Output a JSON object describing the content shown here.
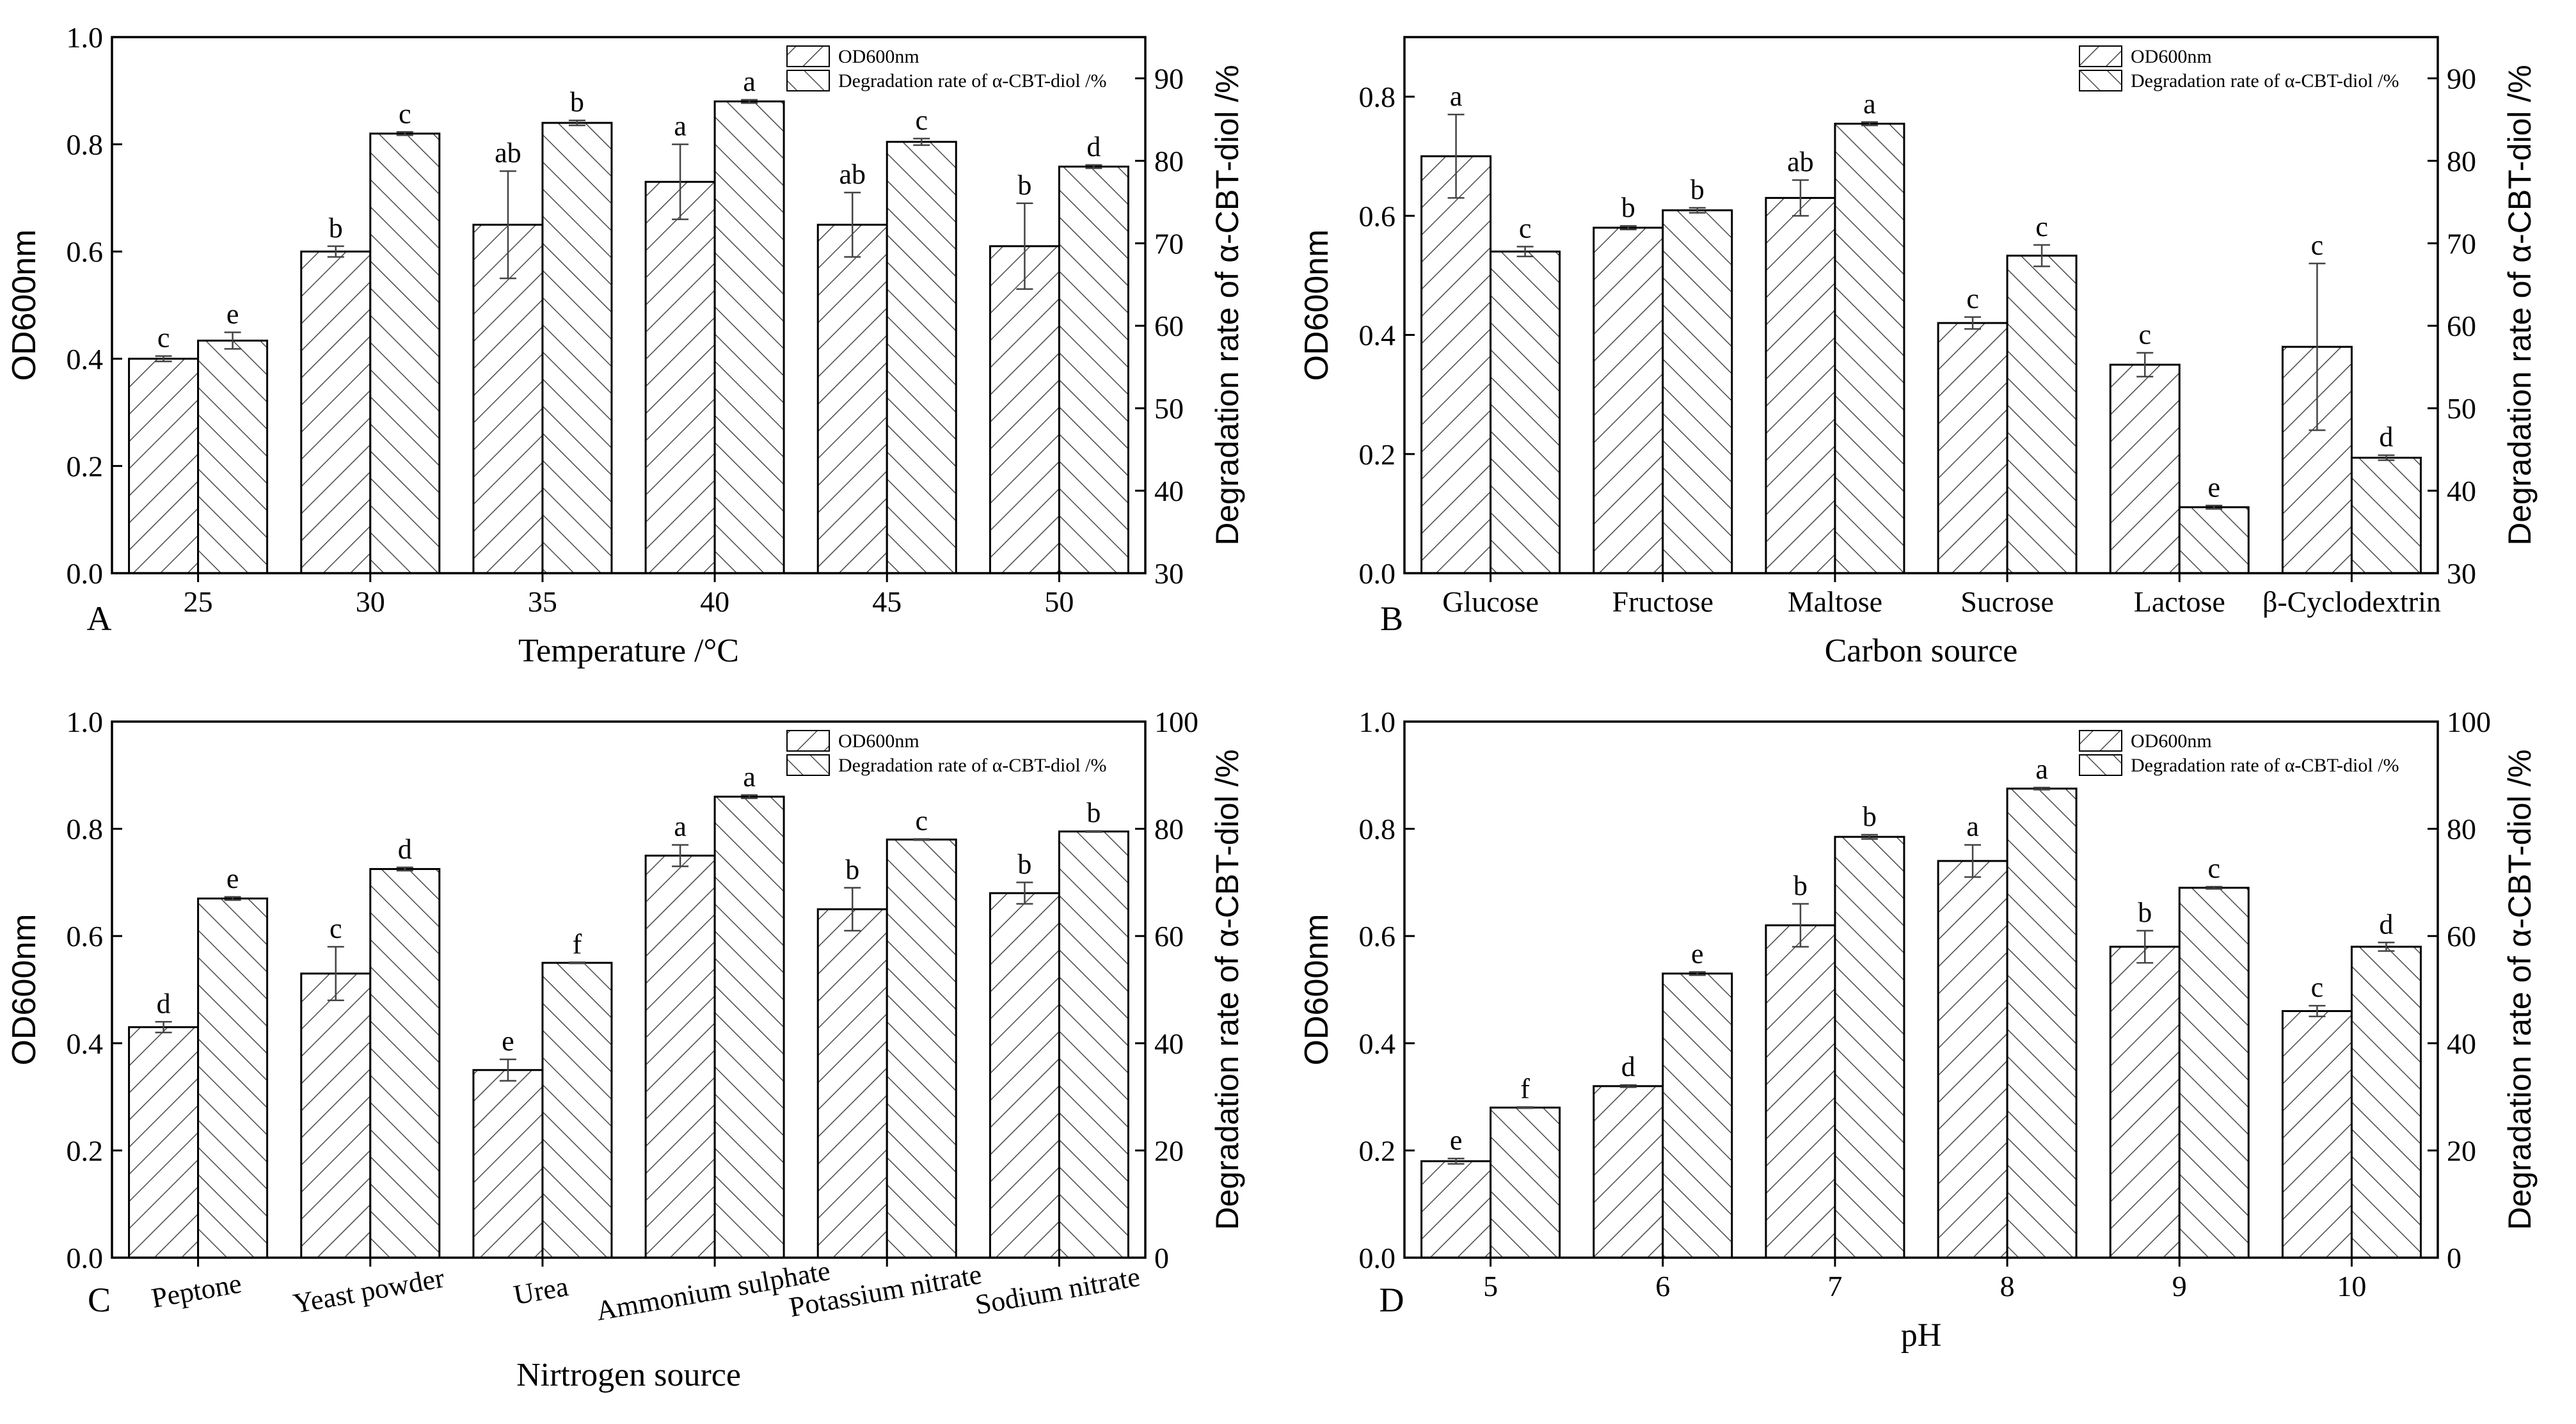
{
  "figure": {
    "legend_labels": [
      "OD600nm",
      "Degradation rate of α-CBT-diol /%"
    ],
    "colors": {
      "axis": "#000000",
      "bar_fill": "#ffffff",
      "hatch": "#4a4a4a"
    }
  },
  "chart_data": [
    {
      "type": "bar",
      "panel_label": "A",
      "title": "",
      "xlabel": "Temperature /°C",
      "ylabel_left": "OD600nm",
      "ylabel_right": "Degradation rate of α-CBT-diol /%",
      "categories": [
        "25",
        "30",
        "35",
        "40",
        "45",
        "50"
      ],
      "ylim_left": [
        0,
        1.0
      ],
      "yticks_left": [
        "0.0",
        "0.2",
        "0.4",
        "0.6",
        "0.8",
        "1.0"
      ],
      "ylim_right": [
        30,
        95
      ],
      "yticks_right": [
        "30",
        "40",
        "50",
        "60",
        "70",
        "80",
        "90"
      ],
      "rotate_xticks": false,
      "legend_position": "top-right",
      "series": [
        {
          "name": "OD600nm",
          "axis": "left",
          "values": [
            0.4,
            0.6,
            0.65,
            0.73,
            0.65,
            0.61
          ],
          "errors": [
            0.005,
            0.01,
            0.1,
            0.07,
            0.06,
            0.08
          ],
          "letters": [
            "c",
            "b",
            "ab",
            "a",
            "ab",
            "b"
          ]
        },
        {
          "name": "Degradation rate of α-CBT-diol /%",
          "axis": "right",
          "values": [
            58.2,
            83.3,
            84.6,
            87.2,
            82.3,
            79.3
          ],
          "errors": [
            1.0,
            0.2,
            0.3,
            0.2,
            0.4,
            0.2
          ],
          "letters": [
            "e",
            "c",
            "b",
            "a",
            "c",
            "d"
          ]
        }
      ]
    },
    {
      "type": "bar",
      "panel_label": "B",
      "title": "",
      "xlabel": "Carbon source",
      "ylabel_left": "OD600nm",
      "ylabel_right": "Degradation rate of α-CBT-diol /%",
      "categories": [
        "Glucose",
        "Fructose",
        "Maltose",
        "Sucrose",
        "Lactose",
        "β-Cyclodextrin"
      ],
      "ylim_left": [
        0,
        0.9
      ],
      "yticks_left": [
        "0.0",
        "0.2",
        "0.4",
        "0.6",
        "0.8"
      ],
      "ylim_right": [
        30,
        95
      ],
      "yticks_right": [
        "30",
        "40",
        "50",
        "60",
        "70",
        "80",
        "90"
      ],
      "rotate_xticks": false,
      "legend_position": "top-right",
      "series": [
        {
          "name": "OD600nm",
          "axis": "left",
          "values": [
            0.7,
            0.58,
            0.63,
            0.42,
            0.35,
            0.38
          ],
          "errors": [
            0.07,
            0.003,
            0.03,
            0.01,
            0.02,
            0.14
          ],
          "letters": [
            "a",
            "b",
            "ab",
            "c",
            "c",
            "c"
          ]
        },
        {
          "name": "Degradation rate of α-CBT-diol /%",
          "axis": "right",
          "values": [
            69.0,
            74.0,
            84.5,
            68.5,
            38.0,
            44.0
          ],
          "errors": [
            0.6,
            0.3,
            0.2,
            1.3,
            0.2,
            0.3
          ],
          "letters": [
            "c",
            "b",
            "a",
            "c",
            "e",
            "d"
          ]
        }
      ]
    },
    {
      "type": "bar",
      "panel_label": "C",
      "title": "",
      "xlabel": "Nirtrogen source",
      "ylabel_left": "OD600nm",
      "ylabel_right": "Degradation rate of α-CBT-diol /%",
      "categories": [
        "Peptone",
        "Yeast powder",
        "Urea",
        "Ammonium sulphate",
        "Potassium nitrate",
        "Sodium nitrate"
      ],
      "ylim_left": [
        0,
        1.0
      ],
      "yticks_left": [
        "0.0",
        "0.2",
        "0.4",
        "0.6",
        "0.8",
        "1.0"
      ],
      "ylim_right": [
        0,
        100
      ],
      "yticks_right": [
        "0",
        "20",
        "40",
        "60",
        "80",
        "100"
      ],
      "rotate_xticks": true,
      "legend_position": "top-right",
      "series": [
        {
          "name": "OD600nm",
          "axis": "left",
          "values": [
            0.43,
            0.53,
            0.35,
            0.75,
            0.65,
            0.68
          ],
          "errors": [
            0.01,
            0.05,
            0.02,
            0.02,
            0.04,
            0.02
          ],
          "letters": [
            "d",
            "c",
            "e",
            "a",
            "b",
            "b"
          ]
        },
        {
          "name": "Degradation rate of α-CBT-diol /%",
          "axis": "right",
          "values": [
            67.0,
            72.5,
            55.0,
            86.0,
            78.0,
            79.5
          ],
          "errors": [
            0.3,
            0.3,
            0.1,
            0.3,
            0.1,
            0.1
          ],
          "letters": [
            "e",
            "d",
            "f",
            "a",
            "c",
            "b"
          ]
        }
      ]
    },
    {
      "type": "bar",
      "panel_label": "D",
      "title": "",
      "xlabel": "pH",
      "ylabel_left": "OD600nm",
      "ylabel_right": "Degradation rate of α-CBT-diol /%",
      "categories": [
        "5",
        "6",
        "7",
        "8",
        "9",
        "10"
      ],
      "ylim_left": [
        0,
        1.0
      ],
      "yticks_left": [
        "0.0",
        "0.2",
        "0.4",
        "0.6",
        "0.8",
        "1.0"
      ],
      "ylim_right": [
        0,
        100
      ],
      "yticks_right": [
        "0",
        "20",
        "40",
        "60",
        "80",
        "100"
      ],
      "rotate_xticks": false,
      "legend_position": "top-right",
      "series": [
        {
          "name": "OD600nm",
          "axis": "left",
          "values": [
            0.18,
            0.32,
            0.62,
            0.74,
            0.58,
            0.46
          ],
          "errors": [
            0.005,
            0.002,
            0.04,
            0.03,
            0.03,
            0.01
          ],
          "letters": [
            "e",
            "d",
            "b",
            "a",
            "b",
            "c"
          ]
        },
        {
          "name": "Degradation rate of α-CBT-diol /%",
          "axis": "right",
          "values": [
            28.0,
            53.0,
            78.5,
            87.5,
            69.0,
            58.0
          ],
          "errors": [
            0.1,
            0.3,
            0.4,
            0.2,
            0.2,
            0.8
          ],
          "letters": [
            "f",
            "e",
            "b",
            "a",
            "c",
            "d"
          ]
        }
      ]
    }
  ]
}
